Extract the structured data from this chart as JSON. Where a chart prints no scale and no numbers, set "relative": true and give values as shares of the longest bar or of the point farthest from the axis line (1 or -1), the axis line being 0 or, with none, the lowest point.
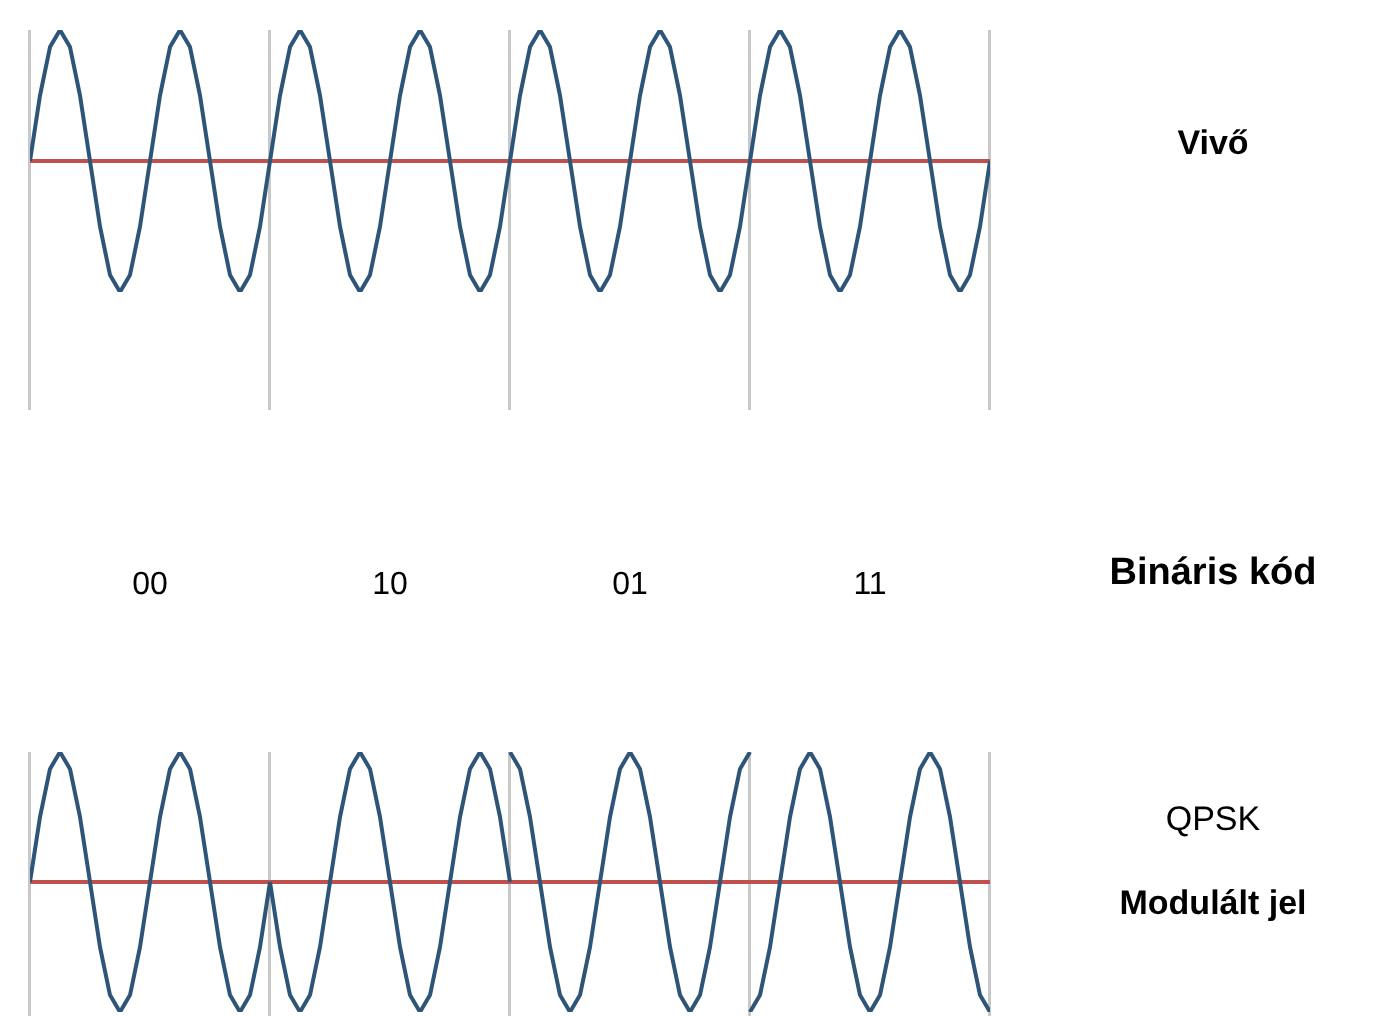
{
  "chart_data": [
    {
      "type": "line",
      "relative": true,
      "categories": [
        null,
        null,
        null,
        null,
        null,
        null,
        null,
        null,
        null,
        null,
        null,
        null,
        null,
        null,
        null,
        null,
        null,
        null,
        null,
        null,
        null,
        null,
        null,
        null,
        null,
        null,
        null,
        null,
        null,
        null,
        null,
        null,
        null,
        null,
        null,
        null,
        null,
        null,
        null,
        null,
        null,
        null,
        null,
        null,
        null,
        null,
        null,
        null,
        null,
        null,
        null,
        null,
        null,
        null,
        null,
        null,
        null,
        null,
        null,
        null,
        null,
        null,
        null,
        null,
        null,
        null,
        null,
        null,
        null,
        null,
        null,
        null,
        null,
        null,
        null,
        null,
        null,
        null,
        null,
        null,
        null,
        null,
        null,
        null,
        null,
        null,
        null,
        null,
        null,
        null,
        null,
        null,
        null,
        null,
        null,
        null,
        null
      ],
      "series": [
        {
          "name": "Vivő",
          "color": "#2e5577",
          "values": [
            0,
            0.5,
            0.87,
            1,
            0.87,
            0.5,
            0,
            -0.5,
            -0.87,
            -1,
            -0.87,
            -0.5,
            0,
            0.5,
            0.87,
            1,
            0.87,
            0.5,
            0,
            -0.5,
            -0.87,
            -1,
            -0.87,
            -0.5,
            0,
            0.5,
            0.87,
            1,
            0.87,
            0.5,
            0,
            -0.5,
            -0.87,
            -1,
            -0.87,
            -0.5,
            0,
            0.5,
            0.87,
            1,
            0.87,
            0.5,
            0,
            -0.5,
            -0.87,
            -1,
            -0.87,
            -0.5,
            0,
            0.5,
            0.87,
            1,
            0.87,
            0.5,
            0,
            -0.5,
            -0.87,
            -1,
            -0.87,
            -0.5,
            0,
            0.5,
            0.87,
            1,
            0.87,
            0.5,
            0,
            -0.5,
            -0.87,
            -1,
            -0.87,
            -0.5,
            0,
            0.5,
            0.87,
            1,
            0.87,
            0.5,
            0,
            -0.5,
            -0.87,
            -1,
            -0.87,
            -0.5,
            0,
            0.5,
            0.87,
            1,
            0.87,
            0.5,
            0,
            -0.5,
            -0.87,
            -1,
            -0.87,
            -0.5,
            0
          ]
        }
      ],
      "ref_lines": [
        {
          "axis": "y",
          "value": 0,
          "color": "#c0504d"
        }
      ]
    },
    {
      "type": "other",
      "title": "Bináris kód",
      "categories": [
        "00",
        "10",
        "01",
        "11"
      ]
    },
    {
      "type": "line",
      "relative": true,
      "categories": [
        null,
        null,
        null,
        null,
        null,
        null,
        null,
        null,
        null,
        null,
        null,
        null,
        null,
        null,
        null,
        null,
        null,
        null,
        null,
        null,
        null,
        null,
        null,
        null,
        null,
        null,
        null,
        null,
        null,
        null,
        null,
        null,
        null,
        null,
        null,
        null,
        null,
        null,
        null,
        null,
        null,
        null,
        null,
        null,
        null,
        null,
        null,
        null,
        null,
        null,
        null,
        null,
        null,
        null,
        null,
        null,
        null,
        null,
        null,
        null,
        null,
        null,
        null,
        null,
        null,
        null,
        null,
        null,
        null,
        null,
        null,
        null,
        null,
        null,
        null,
        null,
        null,
        null,
        null,
        null,
        null,
        null,
        null,
        null,
        null,
        null,
        null,
        null,
        null,
        null,
        null,
        null,
        null,
        null,
        null,
        null,
        null
      ],
      "series": [
        {
          "name": "QPSK",
          "color": "#2e5577",
          "values": [
            0,
            0.5,
            0.87,
            1,
            0.87,
            0.5,
            0,
            -0.5,
            -0.87,
            -1,
            -0.87,
            -0.5,
            0,
            0.5,
            0.87,
            1,
            0.87,
            0.5,
            0,
            -0.5,
            -0.87,
            -1,
            -0.87,
            -0.5,
            0,
            null,
            null,
            null,
            null,
            null,
            null,
            null,
            null,
            null,
            null,
            null,
            null,
            null,
            null,
            null,
            null,
            null,
            null,
            null,
            null,
            null,
            null,
            null,
            null,
            null,
            null,
            null,
            null,
            null,
            null,
            null,
            null,
            null,
            null,
            null,
            null,
            null,
            null,
            null,
            null,
            null,
            null,
            null,
            null,
            null,
            null,
            null,
            null,
            null,
            null,
            null,
            null,
            null,
            null,
            null,
            null,
            null,
            null,
            null,
            null,
            null,
            null,
            null,
            null,
            null,
            null,
            null,
            null,
            null,
            null,
            null,
            null
          ]
        },
        {
          "color": "#2e5577",
          "values": [
            null,
            null,
            null,
            null,
            null,
            null,
            null,
            null,
            null,
            null,
            null,
            null,
            null,
            null,
            null,
            null,
            null,
            null,
            null,
            null,
            null,
            null,
            null,
            null,
            0,
            -0.5,
            -0.87,
            -1,
            -0.87,
            -0.5,
            0,
            0.5,
            0.87,
            1,
            0.87,
            0.5,
            0,
            -0.5,
            -0.87,
            -1,
            -0.87,
            -0.5,
            0,
            0.5,
            0.87,
            1,
            0.87,
            0.5,
            0,
            null,
            null,
            null,
            null,
            null,
            null,
            null,
            null,
            null,
            null,
            null,
            null,
            null,
            null,
            null,
            null,
            null,
            null,
            null,
            null,
            null,
            null,
            null,
            null,
            null,
            null,
            null,
            null,
            null,
            null,
            null,
            null,
            null,
            null,
            null,
            null,
            null,
            null,
            null,
            null,
            null,
            null,
            null,
            null,
            null,
            null,
            null,
            null
          ]
        },
        {
          "color": "#2e5577",
          "values": [
            null,
            null,
            null,
            null,
            null,
            null,
            null,
            null,
            null,
            null,
            null,
            null,
            null,
            null,
            null,
            null,
            null,
            null,
            null,
            null,
            null,
            null,
            null,
            null,
            null,
            null,
            null,
            null,
            null,
            null,
            null,
            null,
            null,
            null,
            null,
            null,
            null,
            null,
            null,
            null,
            null,
            null,
            null,
            null,
            null,
            null,
            null,
            null,
            1,
            0.87,
            0.5,
            0,
            -0.5,
            -0.87,
            -1,
            -0.87,
            -0.5,
            0,
            0.5,
            0.87,
            1,
            0.87,
            0.5,
            0,
            -0.5,
            -0.87,
            -1,
            -0.87,
            -0.5,
            0,
            0.5,
            0.87,
            1,
            null,
            null,
            null,
            null,
            null,
            null,
            null,
            null,
            null,
            null,
            null,
            null,
            null,
            null,
            null,
            null,
            null,
            null,
            null,
            null,
            null,
            null,
            null,
            null
          ]
        },
        {
          "color": "#2e5577",
          "values": [
            null,
            null,
            null,
            null,
            null,
            null,
            null,
            null,
            null,
            null,
            null,
            null,
            null,
            null,
            null,
            null,
            null,
            null,
            null,
            null,
            null,
            null,
            null,
            null,
            null,
            null,
            null,
            null,
            null,
            null,
            null,
            null,
            null,
            null,
            null,
            null,
            null,
            null,
            null,
            null,
            null,
            null,
            null,
            null,
            null,
            null,
            null,
            null,
            null,
            null,
            null,
            null,
            null,
            null,
            null,
            null,
            null,
            null,
            null,
            null,
            null,
            null,
            null,
            null,
            null,
            null,
            null,
            null,
            null,
            null,
            null,
            null,
            -1,
            -0.87,
            -0.5,
            0,
            0.5,
            0.87,
            1,
            0.87,
            0.5,
            0,
            -0.5,
            -0.87,
            -1,
            -0.87,
            -0.5,
            0,
            0.5,
            0.87,
            1,
            0.87,
            0.5,
            0,
            -0.5,
            -0.87,
            -1
          ]
        }
      ],
      "annotations": [
        "Modulált jel"
      ],
      "ref_lines": [
        {
          "axis": "y",
          "value": 0,
          "color": "#c0504d"
        }
      ]
    }
  ]
}
